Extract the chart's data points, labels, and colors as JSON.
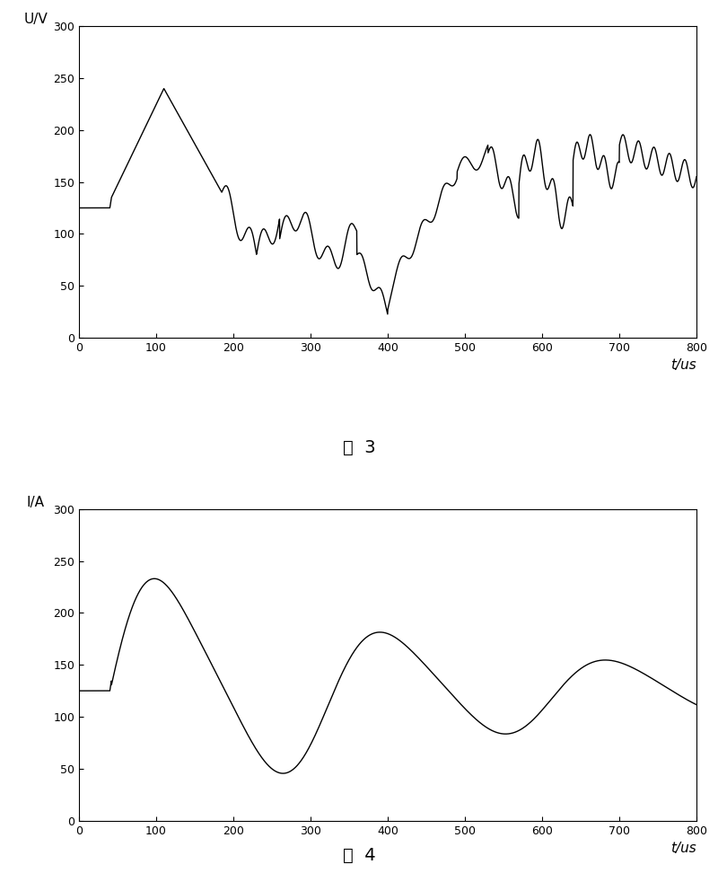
{
  "fig3": {
    "ylabel": "U/V",
    "xlabel": "t/us",
    "caption": "图  3",
    "xlim": [
      0,
      800
    ],
    "ylim": [
      0,
      300
    ],
    "xticks": [
      0,
      100,
      200,
      300,
      400,
      500,
      600,
      700,
      800
    ],
    "yticks": [
      0,
      50,
      100,
      150,
      200,
      250,
      300
    ]
  },
  "fig4": {
    "ylabel": "I/A",
    "xlabel": "t/us",
    "caption": "图  4",
    "xlim": [
      0,
      800
    ],
    "ylim": [
      0,
      300
    ],
    "xticks": [
      0,
      100,
      200,
      300,
      400,
      500,
      600,
      700,
      800
    ],
    "yticks": [
      0,
      50,
      100,
      150,
      200,
      250,
      300
    ]
  },
  "line_color": "#000000",
  "line_width": 1.0,
  "background_color": "#ffffff",
  "figsize": [
    8.0,
    9.72
  ],
  "dpi": 100
}
